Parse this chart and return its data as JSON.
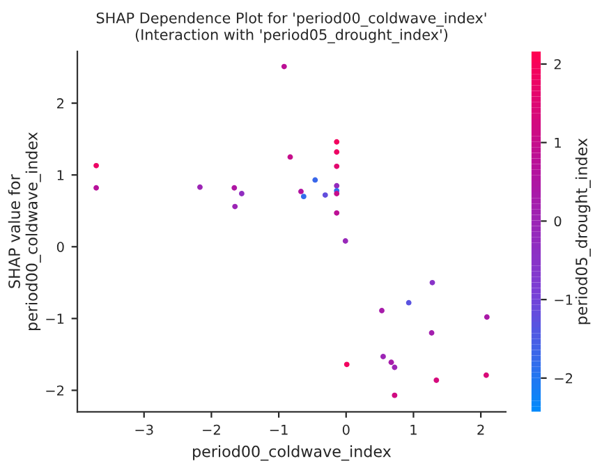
{
  "chart_data": {
    "type": "scatter",
    "title": "SHAP Dependence Plot for 'period00_coldwave_index'\n(Interaction with 'period05_drought_index')",
    "xlabel": "period00_coldwave_index",
    "ylabel": "SHAP value for\nperiod00_coldwave_index",
    "clabel": "period05_drought_index",
    "x": [
      -3.71,
      -3.71,
      -2.17,
      -1.66,
      -1.55,
      -1.65,
      -0.92,
      -0.83,
      -0.67,
      -0.63,
      -0.46,
      -0.31,
      -0.14,
      -0.14,
      -0.14,
      -0.14,
      -0.14,
      -0.14,
      -0.14,
      -0.01,
      1.28,
      0.93,
      0.53,
      2.09,
      1.27,
      0.55,
      0.67,
      0.72,
      0.01,
      1.34,
      2.08,
      0.72
    ],
    "values": [
      1.13,
      0.82,
      0.83,
      0.82,
      0.74,
      0.56,
      2.51,
      1.25,
      0.77,
      0.7,
      0.93,
      0.72,
      1.46,
      1.32,
      1.12,
      0.85,
      0.78,
      0.74,
      0.47,
      0.08,
      -0.5,
      -0.78,
      -0.89,
      -0.98,
      -1.2,
      -1.53,
      -1.61,
      -1.68,
      -1.64,
      -1.86,
      -1.79,
      -2.07
    ],
    "cvalues": [
      1.8,
      0.7,
      0.0,
      0.5,
      -0.3,
      0.0,
      0.8,
      1.0,
      0.6,
      -1.8,
      -1.7,
      -1.2,
      1.9,
      1.8,
      1.6,
      -0.2,
      -1.8,
      1.0,
      0.8,
      -0.1,
      -0.5,
      -1.3,
      0.3,
      0.4,
      0.2,
      0.0,
      0.3,
      0.0,
      1.9,
      1.3,
      1.4,
      1.2
    ],
    "clim": [
      -2.43,
      2.16
    ],
    "cticks": [
      {
        "value": -2,
        "label": "−2"
      },
      {
        "value": -1,
        "label": "−1"
      },
      {
        "value": 0,
        "label": "0"
      },
      {
        "value": 1,
        "label": "1"
      },
      {
        "value": 2,
        "label": "2"
      }
    ],
    "xlim": [
      -3.99,
      2.37
    ],
    "ylim": [
      -2.3,
      2.72
    ],
    "xticks": [
      {
        "value": -3,
        "label": "−3"
      },
      {
        "value": -2,
        "label": "−2"
      },
      {
        "value": -1,
        "label": "−1"
      },
      0,
      1,
      2
    ],
    "yticks": [
      {
        "value": -2,
        "label": "−2"
      },
      {
        "value": -1,
        "label": "−1"
      },
      0,
      1,
      2
    ],
    "grid": false,
    "legend": false
  }
}
